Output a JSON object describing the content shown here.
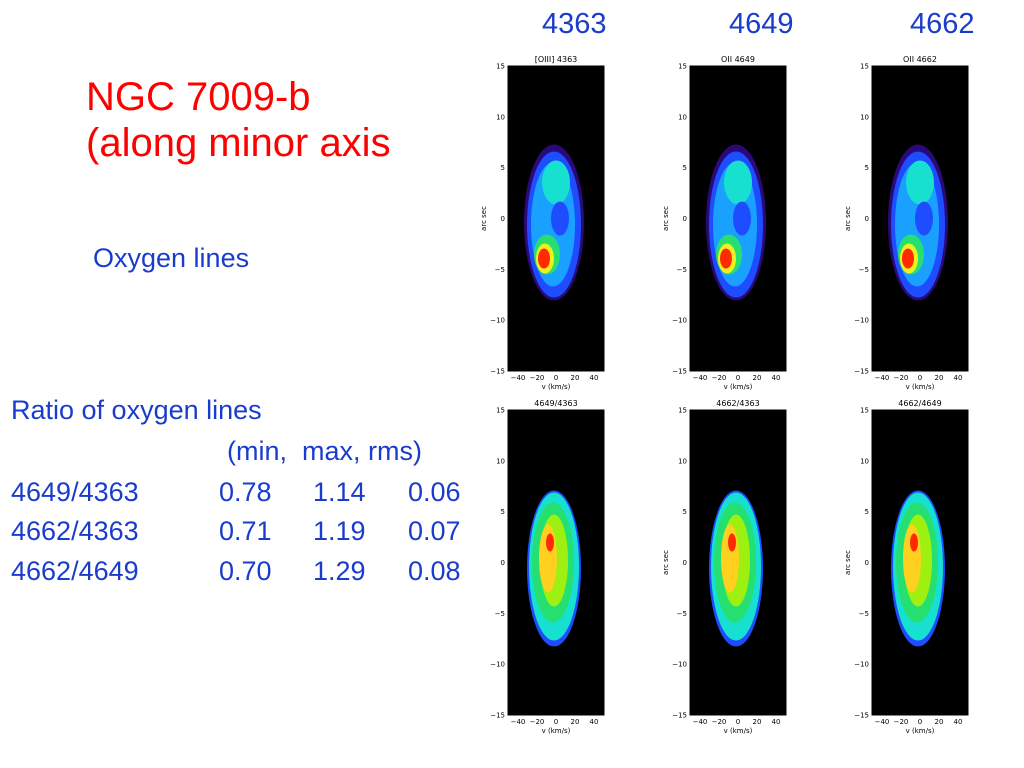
{
  "slide": {
    "title_line1": "NGC 7009-b",
    "title_line2": "(along minor axis",
    "subtitle": "Oxygen lines",
    "column_headers": [
      "4363",
      "4649",
      "4662"
    ],
    "ratio_title": "Ratio of oxygen lines",
    "ratio_header": "(min,  max, rms)",
    "ratio_rows": [
      {
        "label": "4649/4363",
        "min": "0.78",
        "max": "1.14",
        "rms": "0.06"
      },
      {
        "label": "4662/4363",
        "min": "0.71",
        "max": "1.19",
        "rms": "0.07"
      },
      {
        "label": "4662/4649",
        "min": "0.70",
        "max": "1.29",
        "rms": "0.08"
      }
    ]
  },
  "panels": [
    {
      "title": "[OIII] 4363",
      "ylabel": "arc sec",
      "xlabel": "v (km/s)"
    },
    {
      "title": "OII 4649",
      "ylabel": "arc sec",
      "xlabel": "v (km/s)"
    },
    {
      "title": "OII 4662",
      "ylabel": "arc sec",
      "xlabel": "v (km/s)"
    },
    {
      "title": "4649/4363",
      "ylabel": "",
      "xlabel": "v (km/s)"
    },
    {
      "title": "4662/4363",
      "ylabel": "arc sec",
      "xlabel": "v (km/s)"
    },
    {
      "title": "4662/4649",
      "ylabel": "arc sec",
      "xlabel": "v (km/s)"
    }
  ],
  "axes": {
    "y_ticks": [
      "15",
      "10",
      "5",
      "0",
      "−5",
      "−10",
      "−15"
    ],
    "x_ticks": [
      "−40",
      "−20",
      "0",
      "20",
      "40"
    ]
  },
  "colors": {
    "text_blue": "#1a3ccc",
    "title_red": "#ff0000",
    "map_background": "#000000"
  }
}
